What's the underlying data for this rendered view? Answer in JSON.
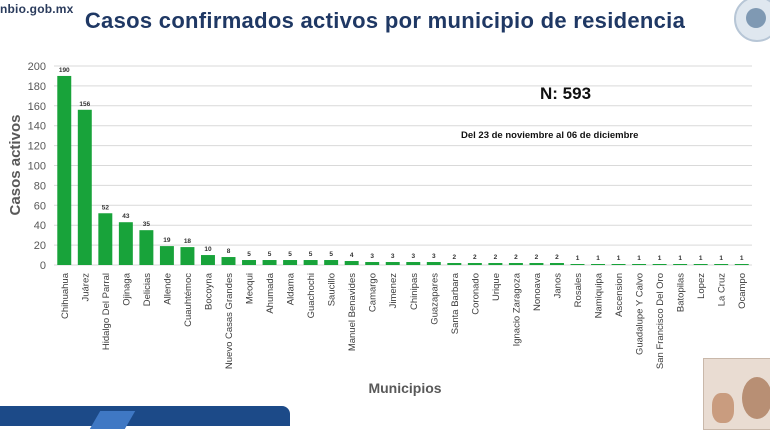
{
  "page": {
    "url_fragment": "nbio.gob.mx",
    "n_label": "N: 593",
    "date_range": "Del 23 de noviembre al 06 de diciembre"
  },
  "colors": {
    "bar": "#18a33a",
    "title": "#1f3864",
    "grid": "#d9d9d9",
    "axis_text": "#595959"
  },
  "chart_data": {
    "type": "bar",
    "title": "Casos confirmados activos por municipio de residencia",
    "xlabel": "Municipios",
    "ylabel": "Casos activos",
    "ylim": [
      0,
      200
    ],
    "yticks": [
      0,
      20,
      40,
      60,
      80,
      100,
      120,
      140,
      160,
      180,
      200
    ],
    "grid": true,
    "legend": "none",
    "categories": [
      "Chihuahua",
      "Juárez",
      "Hidalgo Del Parral",
      "Ojinaga",
      "Delicias",
      "Allende",
      "Cuauhtémoc",
      "Bocoyna",
      "Nuevo Casas Grandes",
      "Meoqui",
      "Ahumada",
      "Aldama",
      "Guachochi",
      "Saucillo",
      "Manuel Benavides",
      "Camargo",
      "Jimenez",
      "Chinipas",
      "Guazapares",
      "Santa Barbara",
      "Coronado",
      "Urique",
      "Ignacio Zaragoza",
      "Nonoava",
      "Janos",
      "Rosales",
      "Namiquipa",
      "Ascension",
      "Guadalupe Y Calvo",
      "San Francisco Del Oro",
      "Batopilas",
      "Lopez",
      "La Cruz",
      "Ocampo"
    ],
    "values": [
      190,
      156,
      52,
      43,
      35,
      19,
      18,
      10,
      8,
      5,
      5,
      5,
      5,
      5,
      4,
      3,
      3,
      3,
      3,
      2,
      2,
      2,
      2,
      2,
      2,
      1,
      1,
      1,
      1,
      1,
      1,
      1,
      1,
      1
    ]
  }
}
